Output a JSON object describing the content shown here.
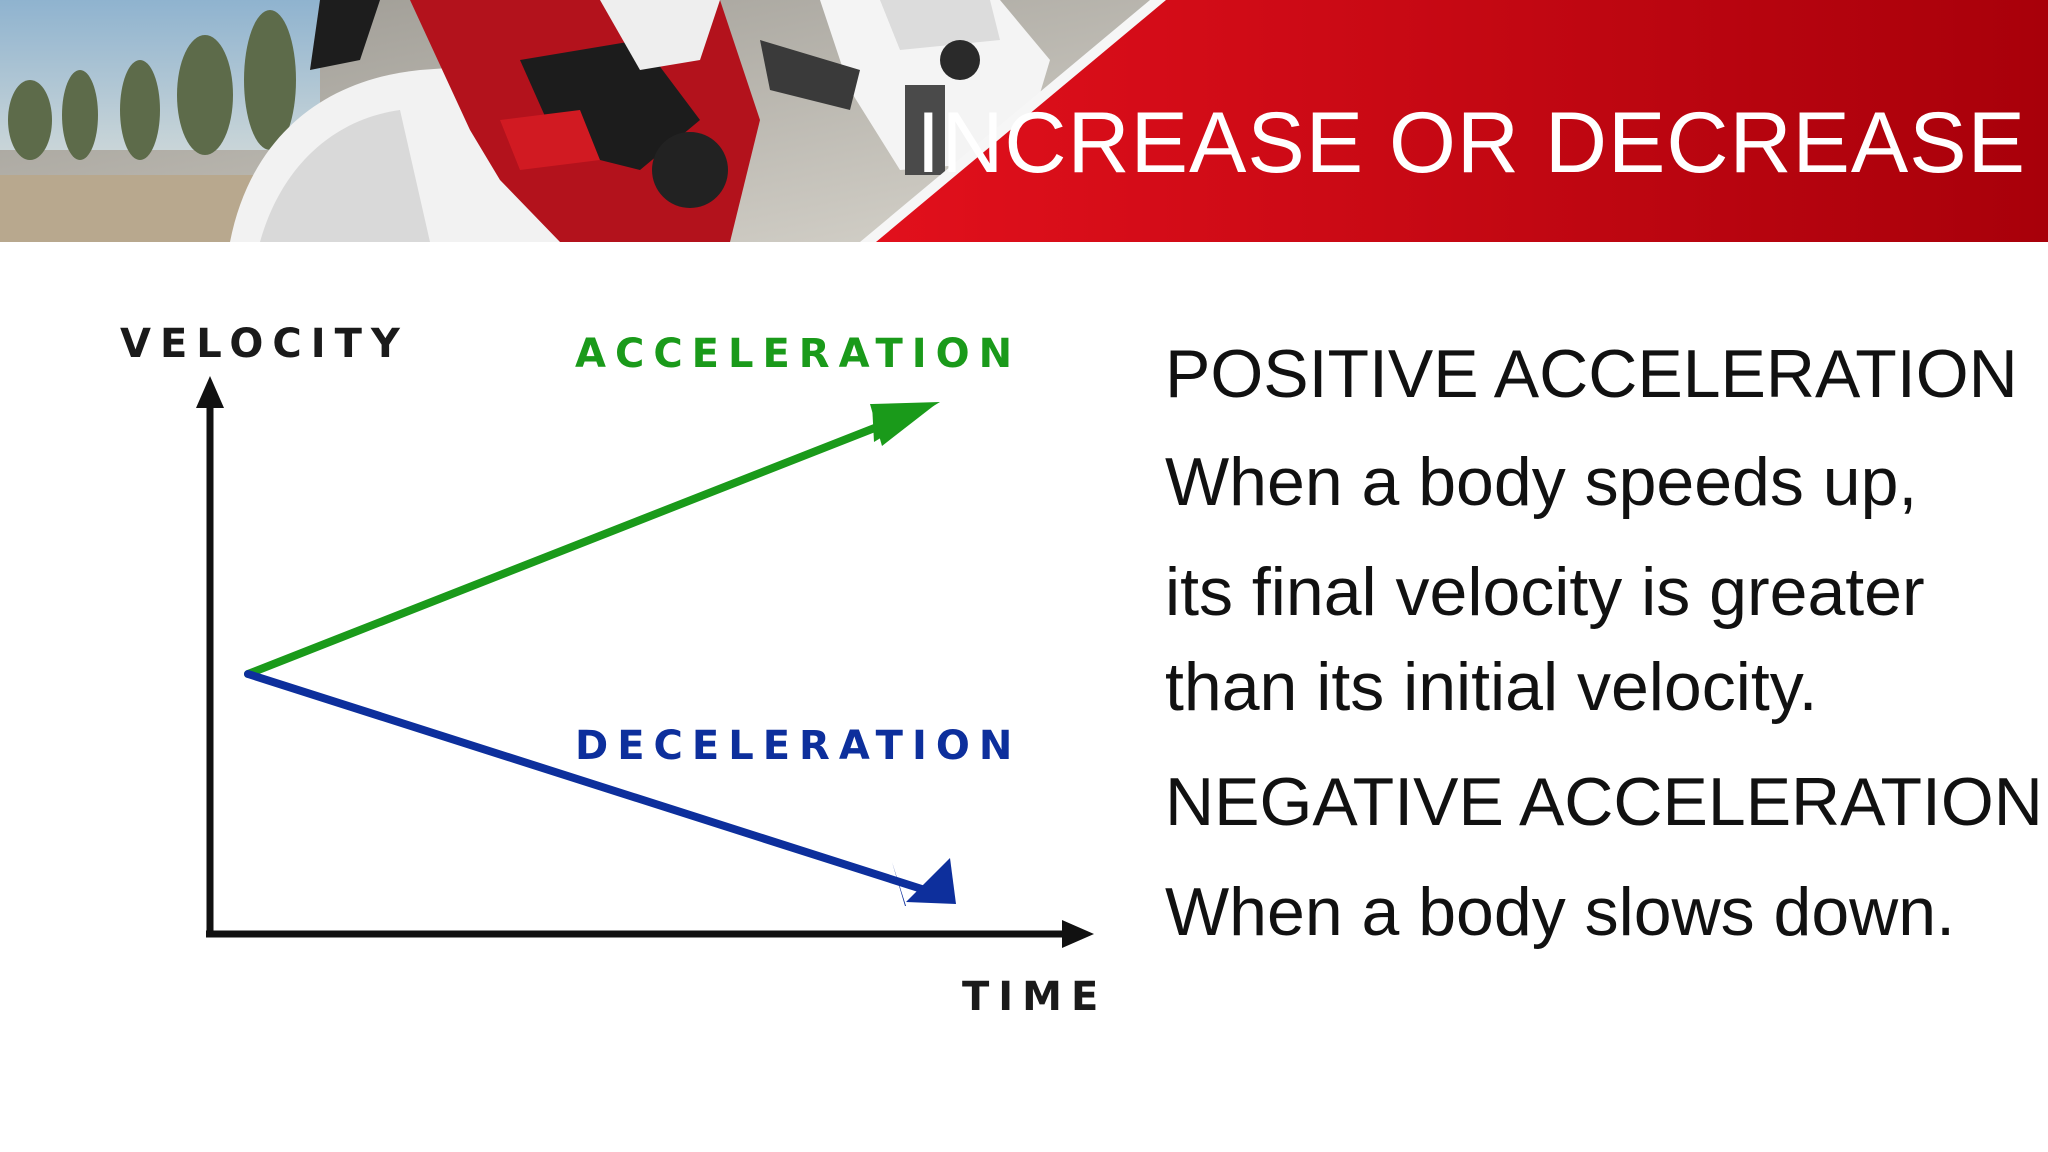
{
  "header": {
    "title": "INCREASE OR DECREASE",
    "photo": "motorcycle racer on white sport bikes",
    "accent_color": "#c4000c"
  },
  "diagram": {
    "y_axis_label": "VELOCITY",
    "x_axis_label": "TIME",
    "lines": [
      {
        "label": "ACCELERATION",
        "color": "#1a9a1a",
        "direction": "up"
      },
      {
        "label": "DECELERATION",
        "color": "#0d2f9c",
        "direction": "down"
      }
    ]
  },
  "content": {
    "lines": [
      "POSITIVE ACCELERATION",
      "When a body speeds up,",
      "its final velocity is greater",
      "than its initial velocity.",
      "NEGATIVE ACCELERATION",
      "When a body slows down."
    ]
  }
}
